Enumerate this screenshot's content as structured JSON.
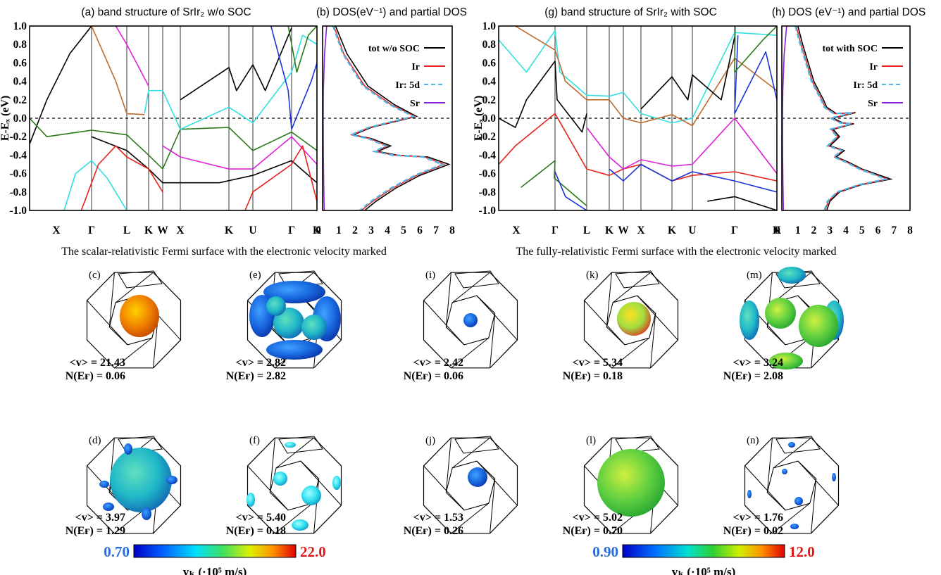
{
  "colors": {
    "black": "#000000",
    "red": "#e8221c",
    "dblue": "#55b4e6",
    "purple": "#8a1fd6",
    "cyan": "#30e0e0",
    "brown": "#c06a2a",
    "green": "#2a7a1a",
    "blue": "#1a35d8",
    "magenta": "#e020d8",
    "cb_low": "#2a6cd8",
    "cb_high": "#e01818"
  },
  "bands": [
    {
      "title": "(a) band structure of SrIr₂ w/o SOC",
      "ylabel": "E-Eₓ (eV)"
    },
    {
      "title": "(g) band structure of SrIr₂  with SOC",
      "ylabel": "E-Eₓ (eV)"
    }
  ],
  "dos": [
    {
      "title": "(b) DOS(eV⁻¹) and partial DOS",
      "legend": [
        "tot w/o SOC",
        "Ir",
        "Ir: 5d",
        "Sr"
      ]
    },
    {
      "title": "(h) DOS (eV⁻¹) and partial DOS",
      "legend": [
        "tot with SOC",
        "Ir",
        "Ir: 5d",
        "Sr"
      ]
    }
  ],
  "kpath_labels": [
    "X",
    "Γ",
    "L",
    "K",
    "W",
    "X",
    "K",
    "U",
    "Γ",
    "K"
  ],
  "dos_ticks": [
    "0",
    "1",
    "2",
    "3",
    "4",
    "5",
    "6",
    "7",
    "8"
  ],
  "fs_captions": [
    "The scalar-relativistic Fermi surface with the electronic velocity marked",
    "The fully-relativistic Fermi surface with the electronic velocity marked"
  ],
  "fermi_surfaces": [
    {
      "label": "(c)",
      "v": "<v> = 21.43",
      "n": "N(Eғ) = 0.06"
    },
    {
      "label": "(d)",
      "v": "<v> = 3.97",
      "n": "N(Eғ) = 1.29"
    },
    {
      "label": "(e)",
      "v": "<v> = 2.82",
      "n": "N(Eғ) = 2.82"
    },
    {
      "label": "(f)",
      "v": "<v> = 5.40",
      "n": "N(Eғ) = 0.18"
    },
    {
      "label": "(i)",
      "v": "<v> = 2.42",
      "n": "N(Eғ) = 0.06"
    },
    {
      "label": "(j)",
      "v": "<v> = 1.53",
      "n": "N(Eғ) = 0.26"
    },
    {
      "label": "(k)",
      "v": "<v> = 5.34",
      "n": "N(Eғ) = 0.18"
    },
    {
      "label": "(l)",
      "v": "<v> = 5.02",
      "n": "N(Eғ) = 0.70"
    },
    {
      "label": "(m)",
      "v": "<v> = 3.24",
      "n": "N(Eғ) = 2.08"
    },
    {
      "label": "(n)",
      "v": "<v> = 1.76",
      "n": "N(Eғ) = 0.02"
    }
  ],
  "colorbars": [
    {
      "min": "0.70",
      "max": "22.0",
      "label": "vₖ (·10⁵ m/s)"
    },
    {
      "min": "0.90",
      "max": "12.0",
      "label": "vₖ (·10⁵ m/s)"
    }
  ],
  "chart_data": [
    {
      "type": "line",
      "title": "(a) band structure of SrIr₂ w/o SOC",
      "ylabel": "E-Eₓ (eV)",
      "ylim": [
        -1.0,
        1.0
      ],
      "yticks": [
        "1.0",
        "0.8",
        "0.6",
        "0.4",
        "0.2",
        "0.0",
        "-0.2",
        "-0.4",
        "-0.6",
        "-0.8",
        "-1.0"
      ],
      "x_labels": [
        "X",
        "Γ",
        "L",
        "K",
        "W",
        "X",
        "K",
        "U",
        "Γ",
        "K"
      ]
    },
    {
      "type": "line",
      "title": "(b) DOS(eV⁻¹) and partial DOS",
      "xlim": [
        0,
        8
      ],
      "ylim": [
        -1.0,
        1.0
      ],
      "series": [
        {
          "name": "tot w/o SOC",
          "x": [
            0.8,
            1.5,
            2.8,
            4.4,
            5.8,
            3.0,
            1.9,
            3.0,
            4.2,
            3.4,
            4.6,
            6.5,
            7.8,
            6.0,
            4.5,
            3.3,
            2.6
          ],
          "y": [
            1.0,
            0.7,
            0.35,
            0.15,
            0.02,
            -0.1,
            -0.18,
            -0.22,
            -0.3,
            -0.36,
            -0.4,
            -0.42,
            -0.5,
            -0.62,
            -0.76,
            -0.9,
            -1.0
          ]
        },
        {
          "name": "Ir",
          "x": [
            0.7,
            1.3,
            2.6,
            4.2,
            5.7,
            2.9,
            1.8,
            2.9,
            4.0,
            3.3,
            4.4,
            6.3,
            7.5,
            5.8,
            4.3,
            3.1,
            2.4
          ],
          "y": [
            1.0,
            0.7,
            0.35,
            0.15,
            0.02,
            -0.1,
            -0.18,
            -0.22,
            -0.3,
            -0.36,
            -0.4,
            -0.42,
            -0.5,
            -0.62,
            -0.76,
            -0.9,
            -1.0
          ]
        },
        {
          "name": "Ir: 5d",
          "x": [
            0.65,
            1.25,
            2.5,
            4.1,
            5.6,
            2.85,
            1.75,
            2.8,
            3.9,
            3.2,
            4.3,
            6.2,
            7.4,
            5.7,
            4.2,
            3.0,
            2.3
          ],
          "y": [
            1.0,
            0.7,
            0.35,
            0.15,
            0.02,
            -0.1,
            -0.18,
            -0.22,
            -0.3,
            -0.36,
            -0.4,
            -0.42,
            -0.5,
            -0.62,
            -0.76,
            -0.9,
            -1.0
          ]
        },
        {
          "name": "Sr",
          "x": [
            0.25,
            0.12,
            0.05,
            0.04,
            0.05,
            0.07,
            0.1
          ],
          "y": [
            1.0,
            0.7,
            0.3,
            0.0,
            -0.4,
            -0.7,
            -1.0
          ]
        }
      ]
    },
    {
      "type": "line",
      "title": "(g) band structure of SrIr₂  with SOC",
      "ylabel": "E-Eₓ (eV)",
      "ylim": [
        -1.0,
        1.0
      ],
      "yticks": [
        "1.0",
        "0.8",
        "0.6",
        "0.4",
        "0.2",
        "0.0",
        "-0.2",
        "-0.4",
        "-0.6",
        "-0.8",
        "-1.0"
      ],
      "x_labels": [
        "X",
        "Γ",
        "L",
        "K",
        "W",
        "X",
        "K",
        "U",
        "Γ",
        "K"
      ]
    },
    {
      "type": "line",
      "title": "(h) DOS (eV⁻¹) and partial DOS",
      "xlim": [
        0,
        8
      ],
      "ylim": [
        -1.0,
        1.0
      ],
      "series": [
        {
          "name": "tot with SOC",
          "x": [
            1.0,
            1.3,
            2.0,
            2.6,
            2.8,
            3.4,
            4.6,
            3.2,
            3.8,
            4.5,
            3.2,
            3.6,
            3.0,
            3.9,
            3.4,
            4.2,
            5.0,
            6.8,
            5.0,
            3.6,
            3.0,
            2.8
          ],
          "y": [
            1.0,
            0.8,
            0.4,
            0.2,
            0.12,
            0.05,
            0.06,
            0.0,
            -0.05,
            -0.06,
            -0.12,
            -0.2,
            -0.3,
            -0.35,
            -0.42,
            -0.48,
            -0.55,
            -0.66,
            -0.72,
            -0.8,
            -0.9,
            -1.0
          ]
        },
        {
          "name": "Ir",
          "x": [
            0.9,
            1.2,
            1.9,
            2.5,
            2.7,
            3.3,
            4.5,
            3.1,
            3.7,
            4.4,
            3.1,
            3.5,
            2.9,
            3.8,
            3.3,
            4.1,
            4.9,
            6.6,
            4.9,
            3.5,
            2.9,
            2.7
          ],
          "y": [
            1.0,
            0.8,
            0.4,
            0.2,
            0.12,
            0.05,
            0.06,
            0.0,
            -0.05,
            -0.06,
            -0.12,
            -0.2,
            -0.3,
            -0.35,
            -0.42,
            -0.48,
            -0.55,
            -0.66,
            -0.72,
            -0.8,
            -0.9,
            -1.0
          ]
        },
        {
          "name": "Ir: 5d",
          "x": [
            0.85,
            1.15,
            1.85,
            2.45,
            2.65,
            3.25,
            4.4,
            3.05,
            3.65,
            4.35,
            3.05,
            3.45,
            2.85,
            3.75,
            3.25,
            4.05,
            4.85,
            6.5,
            4.85,
            3.45,
            2.85,
            2.65
          ],
          "y": [
            1.0,
            0.8,
            0.4,
            0.2,
            0.12,
            0.05,
            0.06,
            0.0,
            -0.05,
            -0.06,
            -0.12,
            -0.2,
            -0.3,
            -0.35,
            -0.42,
            -0.48,
            -0.55,
            -0.66,
            -0.72,
            -0.8,
            -0.9,
            -1.0
          ]
        },
        {
          "name": "Sr",
          "x": [
            0.3,
            0.15,
            0.06,
            0.04,
            0.05,
            0.07,
            0.1
          ],
          "y": [
            1.0,
            0.7,
            0.3,
            0.0,
            -0.4,
            -0.7,
            -1.0
          ]
        }
      ]
    }
  ]
}
